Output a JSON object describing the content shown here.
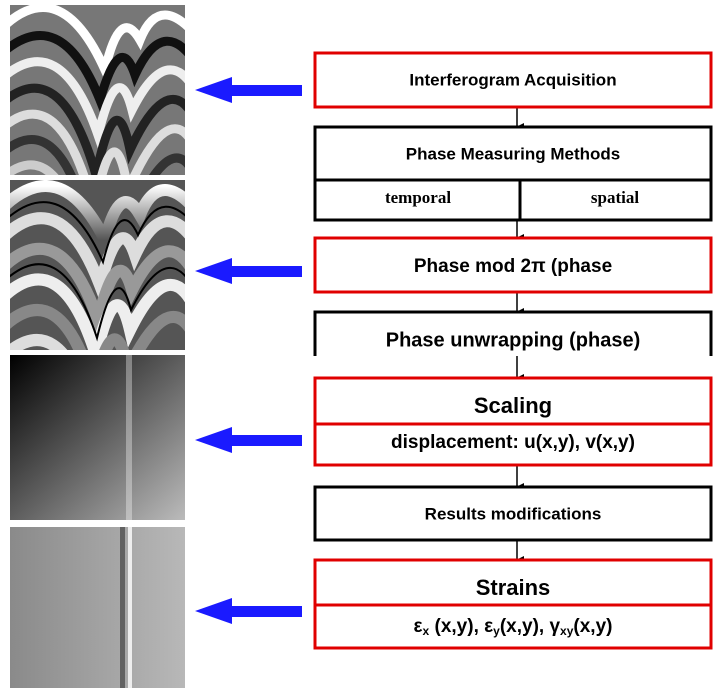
{
  "steps": [
    {
      "label": "Interferogram Acquisition"
    },
    {
      "label": "Phase Measuring Methods",
      "options": [
        "temporal",
        "spatial"
      ]
    },
    {
      "label": "Phase mod 2π (phase"
    },
    {
      "label": "Phase unwrapping (phase)"
    },
    {
      "label": "Scaling",
      "detail": "displacement: u(x,y), v(x,y)"
    },
    {
      "label": "Results modifications"
    },
    {
      "label": "Strains",
      "detail_parts": [
        "ε",
        "x",
        " (x,y), ",
        "ε",
        "y",
        "(x,y), ",
        "γ",
        "xy",
        "(x,y)"
      ]
    }
  ]
}
